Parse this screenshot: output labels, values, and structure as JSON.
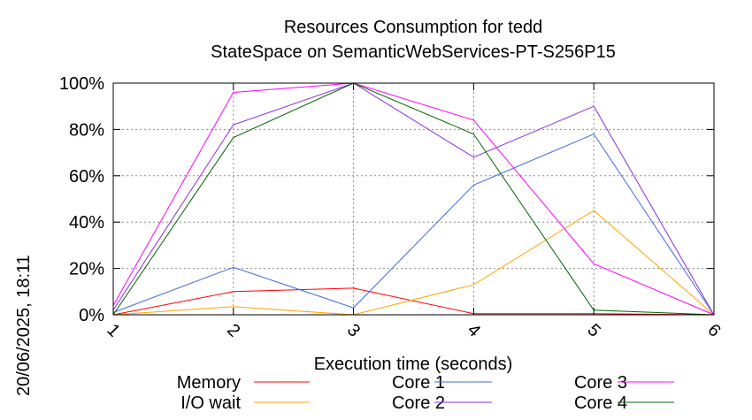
{
  "chart_data": {
    "type": "line",
    "title": "Resources Consumption for tedd",
    "subtitle": "StateSpace on SemanticWebServices-PT-S256P15",
    "xlabel": "Execution time (seconds)",
    "ylabel": "",
    "side_label": "20/06/2025, 18:11",
    "x": [
      1,
      2,
      3,
      4,
      5,
      6
    ],
    "x_ticks": [
      "1",
      "2",
      "3",
      "4",
      "5",
      "6"
    ],
    "y_ticks": [
      "0%",
      "20%",
      "40%",
      "60%",
      "80%",
      "100%"
    ],
    "ylim": [
      0,
      100
    ],
    "xlim": [
      1,
      6
    ],
    "grid": true,
    "legend_position": "bottom",
    "series": [
      {
        "name": "Memory",
        "color": "#ff0000",
        "values": [
          0,
          10,
          11.5,
          0.5,
          0.5,
          0
        ]
      },
      {
        "name": "I/O wait",
        "color": "#ffa500",
        "values": [
          0,
          3.5,
          0,
          13,
          45,
          0
        ]
      },
      {
        "name": "Core 1",
        "color": "#4169e1",
        "values": [
          1,
          20.5,
          3,
          56,
          78,
          0
        ]
      },
      {
        "name": "Core 2",
        "color": "#8a2be2",
        "values": [
          2,
          82,
          100,
          68,
          90,
          0
        ]
      },
      {
        "name": "Core 3",
        "color": "#ff00ff",
        "values": [
          4,
          96,
          100,
          84,
          22,
          0
        ]
      },
      {
        "name": "Core 4",
        "color": "#006400",
        "values": [
          0,
          76.5,
          100,
          78,
          2,
          0
        ]
      }
    ]
  }
}
